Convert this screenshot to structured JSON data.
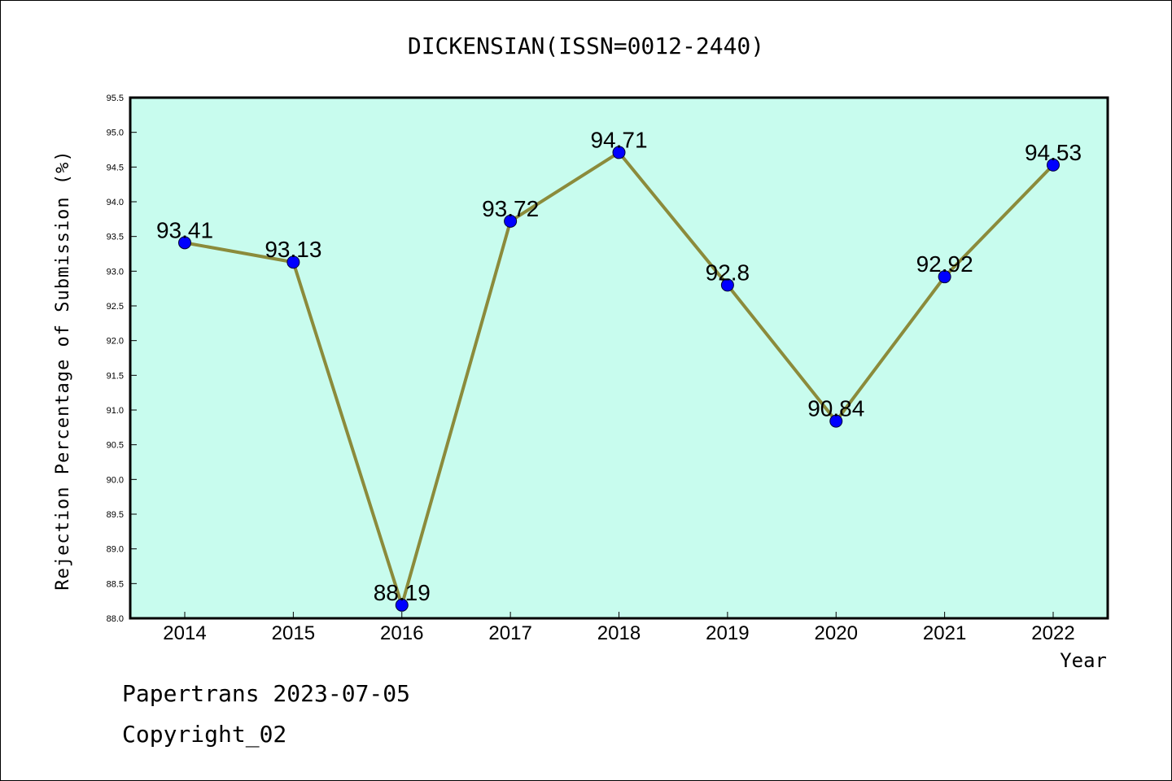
{
  "chart_data": {
    "type": "line",
    "title": "DICKENSIAN(ISSN=0012-2440)",
    "xlabel": "Year",
    "ylabel": "Rejection Percentage of Submission (%)",
    "categories": [
      "2014",
      "2015",
      "2016",
      "2017",
      "2018",
      "2019",
      "2020",
      "2021",
      "2022"
    ],
    "series": [
      {
        "values": [
          93.41,
          93.13,
          88.19,
          93.72,
          94.71,
          92.8,
          90.84,
          92.92,
          94.53
        ],
        "data_labels": [
          "93.41",
          "93.13",
          "88.19",
          "93.72",
          "94.71",
          "92.8",
          "90.84",
          "92.92",
          "94.53"
        ]
      }
    ],
    "ylim": [
      88.0,
      95.5
    ],
    "ytick_labels": [
      "88.0",
      "88.5",
      "89.0",
      "89.5",
      "90.0",
      "90.5",
      "91.0",
      "91.5",
      "92.0",
      "92.5",
      "93.0",
      "93.5",
      "94.0",
      "94.5",
      "95.0",
      "95.5"
    ],
    "grid": false,
    "colors": {
      "plot_background": "#c8fcee",
      "line": "#8b8b3b",
      "marker": "#0000ff"
    }
  },
  "footer": {
    "line1": "Papertrans 2023-07-05",
    "line2": "Copyright_02"
  }
}
